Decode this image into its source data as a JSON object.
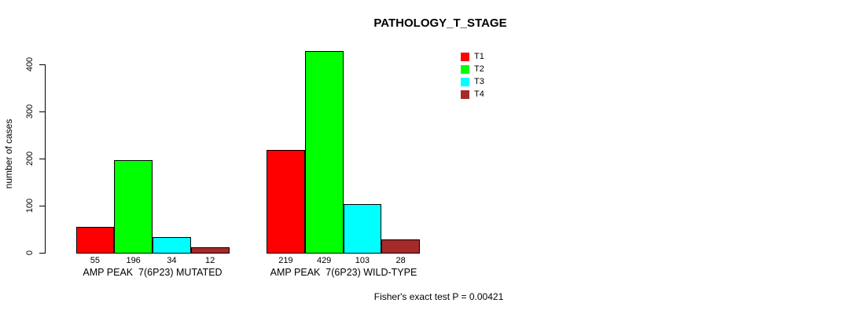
{
  "page": {
    "background": "#ffffff"
  },
  "chart_data": {
    "type": "bar",
    "title": "PATHOLOGY_T_STAGE",
    "ylabel": "number of cases",
    "xlabel": "",
    "categories": [
      "AMP PEAK  7(6P23) MUTATED",
      "AMP PEAK  7(6P23) WILD-TYPE"
    ],
    "series": [
      {
        "name": "T1",
        "color": "#ff0000",
        "values": [
          55,
          219
        ]
      },
      {
        "name": "T2",
        "color": "#00ff00",
        "values": [
          196,
          429
        ]
      },
      {
        "name": "T3",
        "color": "#00ffff",
        "values": [
          34,
          103
        ]
      },
      {
        "name": "T4",
        "color": "#a52a2a",
        "values": [
          12,
          28
        ]
      }
    ],
    "ylim": [
      0,
      400
    ],
    "yticks": [
      0,
      100,
      200,
      300,
      400
    ],
    "show_bar_value_labels": true,
    "legend_position": "top-right",
    "grid": false,
    "annotation": "Fisher's exact test P = 0.00421",
    "axis_color": "#000000",
    "text_color": "#000000"
  }
}
